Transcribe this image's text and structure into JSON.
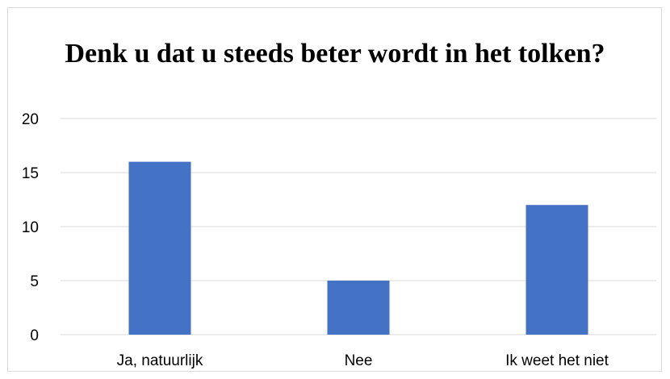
{
  "chart_data": {
    "type": "bar",
    "title": "Denk u dat u steeds beter wordt in het tolken?",
    "categories": [
      "Ja, natuurlijk",
      "Nee",
      "Ik weet het niet"
    ],
    "values": [
      16,
      5,
      12
    ],
    "xlabel": "",
    "ylabel": "",
    "ylim": [
      0,
      20
    ],
    "yticks": [
      0,
      5,
      10,
      15,
      20
    ],
    "grid": true,
    "legend": "none",
    "bar_color": "#4472c4",
    "grid_color": "#d9d9d9"
  }
}
